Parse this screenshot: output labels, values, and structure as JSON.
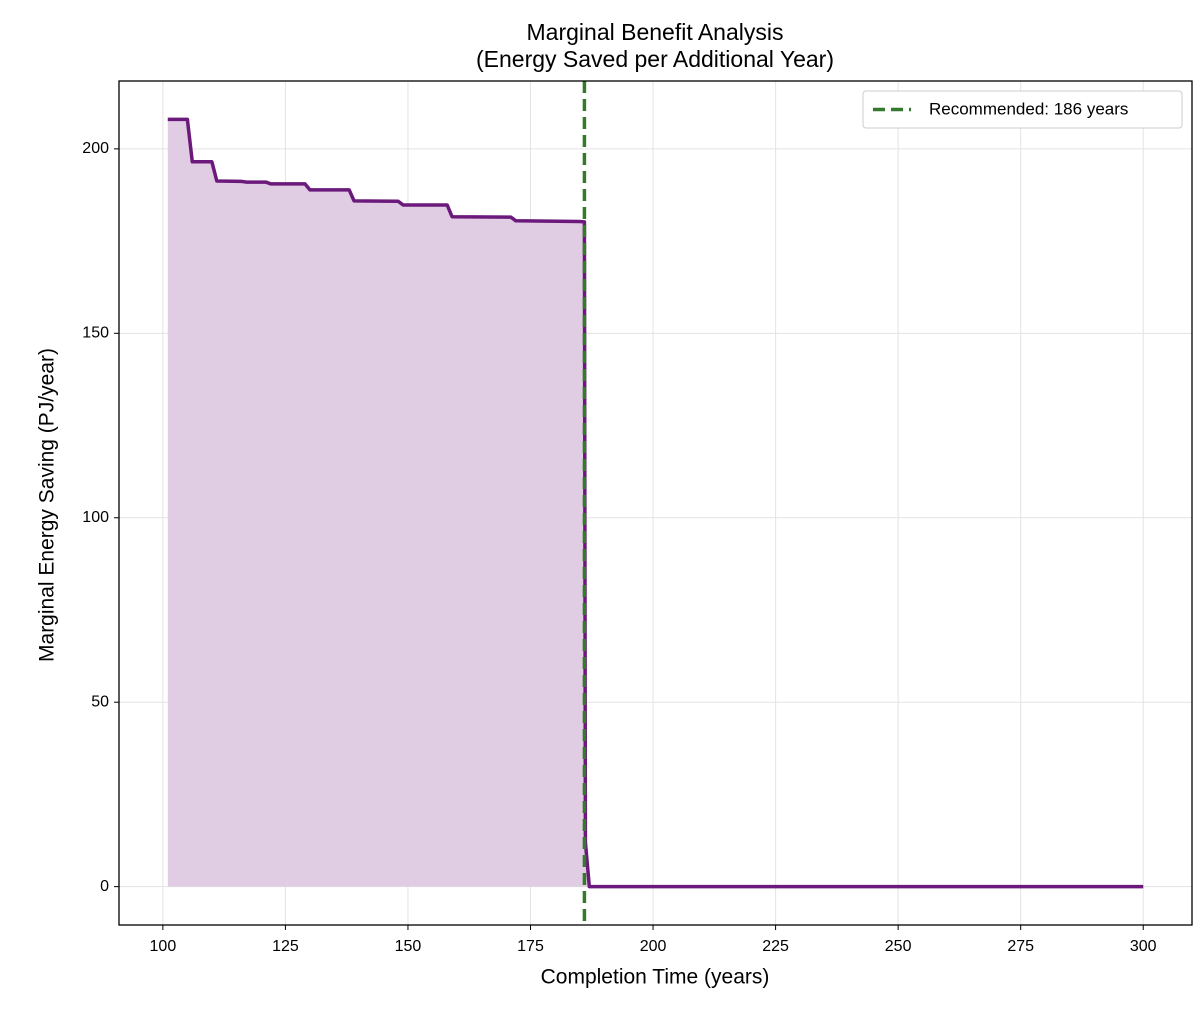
{
  "chart_data": {
    "type": "line",
    "title": [
      "Marginal Benefit Analysis",
      "(Energy Saved per Additional Year)"
    ],
    "xlabel": "Completion Time (years)",
    "ylabel": "Marginal Energy Saving (PJ/year)",
    "series": [
      {
        "color": "#6b1a7b",
        "fill_color": "#e0cce3",
        "x": [
          101,
          105,
          106,
          110,
          111,
          116,
          117,
          121,
          122,
          129,
          130,
          138,
          139,
          148,
          149,
          158,
          159,
          171,
          172,
          185,
          186,
          186.2,
          187,
          300
        ],
        "values": [
          208,
          208,
          196.5,
          196.5,
          191.3,
          191.2,
          191.0,
          191.0,
          190.5,
          190.5,
          188.9,
          188.9,
          185.9,
          185.8,
          184.8,
          184.8,
          181.6,
          181.5,
          180.5,
          180.3,
          180.2,
          12,
          0,
          0
        ]
      }
    ],
    "vline": {
      "x": 186,
      "color": "#357a2c",
      "name": "Recommended: 186 years"
    },
    "xlim": [
      91.05,
      309.95
    ],
    "ylim": [
      -10.4,
      218.4
    ],
    "xticks": [
      100,
      125,
      150,
      175,
      200,
      225,
      250,
      275,
      300
    ],
    "yticks": [
      0,
      50,
      100,
      150,
      200
    ],
    "grid": true,
    "legend": "upper right"
  }
}
